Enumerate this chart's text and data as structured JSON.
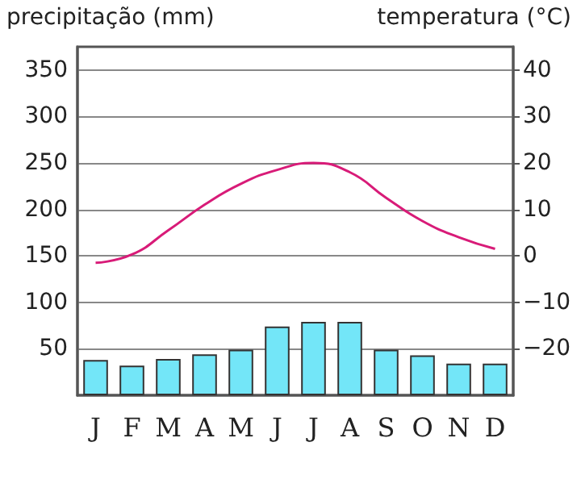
{
  "chart_data": {
    "type": "bar",
    "ylabel": "precipitação (mm)",
    "y2label": "temperatura (°C)",
    "categories": [
      "J",
      "F",
      "M",
      "A",
      "M",
      "J",
      "J",
      "A",
      "S",
      "O",
      "N",
      "D"
    ],
    "series": [
      {
        "color": "#73e6f8",
        "values": [
          38,
          32,
          39,
          44,
          49,
          74,
          79,
          79,
          49,
          43,
          34,
          34
        ]
      },
      {
        "type": "line",
        "axis": "y2",
        "color": "#d81b78",
        "marker": "none",
        "values": [
          -1.5,
          0.3,
          5.5,
          11,
          15.5,
          18.5,
          20,
          18,
          12.5,
          7.5,
          4,
          1.5
        ]
      }
    ],
    "ylim": [
      0,
      375
    ],
    "yticks": [
      50,
      100,
      150,
      200,
      250,
      300,
      350
    ],
    "y2lim": [
      -30,
      45
    ],
    "y2ticks": [
      {
        "value": -20,
        "label": "−20"
      },
      {
        "value": -10,
        "label": "−10"
      },
      0,
      10,
      20,
      30,
      40
    ],
    "grid": "y"
  }
}
